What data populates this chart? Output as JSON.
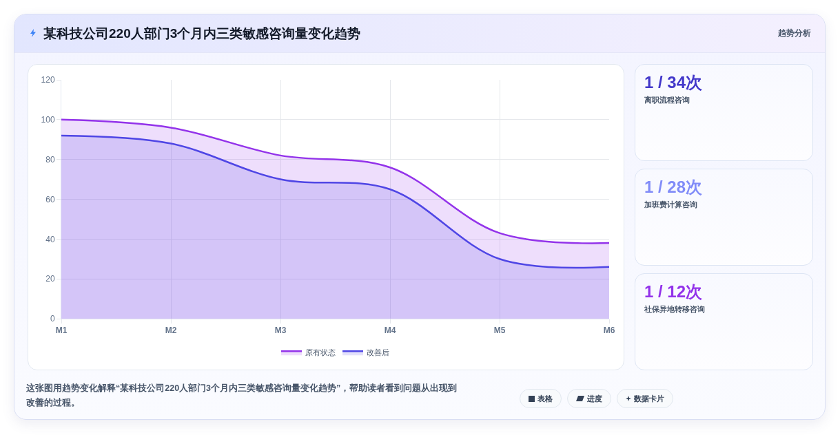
{
  "chart_data": [
    {
      "type": "area",
      "title": "某科技公司220人部门3个月内三类敏感咨询量变化趋势",
      "categories": [
        "M1",
        "M2",
        "M3",
        "M4",
        "M5",
        "M6"
      ],
      "series": [
        {
          "name": "原有状态",
          "color": "#9333ea",
          "values": [
            100,
            96,
            82,
            76,
            43,
            38
          ]
        },
        {
          "name": "改善后",
          "color": "#4f46e5",
          "values": [
            92,
            88,
            70,
            65,
            30,
            26
          ]
        }
      ],
      "ylim": [
        0,
        120
      ],
      "yticks": [
        0,
        20,
        40,
        60,
        80,
        100,
        120
      ],
      "grid": true,
      "legend": "bottom",
      "annotations": [
        "趋势分析",
        "这张图用趋势变化解释“某科技公司220人部门3个月内三类敏感咨询量变化趋势”，帮助读者看到问题从出现到改善的过程。",
        "表格",
        "进度",
        "数据卡片"
      ]
    },
    {
      "type": "other",
      "title": "1 / 34次",
      "subtitle": "离职流程咨询",
      "color": "#4338ca"
    },
    {
      "type": "other",
      "title": "1 / 28次",
      "subtitle": "加班费计算咨询",
      "color": "#818cf8"
    },
    {
      "type": "other",
      "title": "1 / 12次",
      "subtitle": "社保异地转移咨询",
      "color": "#9333ea"
    }
  ]
}
